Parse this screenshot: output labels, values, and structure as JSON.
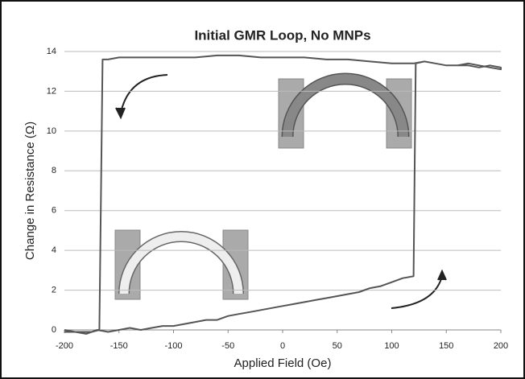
{
  "chart_data": {
    "type": "line",
    "title": "Initial GMR Loop, No MNPs",
    "xlabel": "Applied Field (Oe)",
    "ylabel": "Change in Resistance (Ω)",
    "x": [
      -200,
      -190,
      -180,
      -170,
      -160,
      -150,
      -140,
      -130,
      -120,
      -110,
      -100,
      -90,
      -80,
      -70,
      -60,
      -50,
      -40,
      -30,
      -20,
      -10,
      0,
      10,
      20,
      30,
      40,
      50,
      60,
      70,
      80,
      90,
      100,
      110,
      120,
      122,
      130,
      140,
      150,
      160,
      170,
      180,
      190,
      200,
      200,
      190,
      180,
      170,
      160,
      150,
      140,
      130,
      120,
      100,
      80,
      60,
      40,
      20,
      0,
      -20,
      -40,
      -60,
      -80,
      -100,
      -120,
      -140,
      -150,
      -160,
      -165,
      -168,
      -175,
      -185,
      -200
    ],
    "series": [
      {
        "color": "#555555",
        "values": [
          0,
          -0.1,
          -0.2,
          0,
          -0.1,
          0,
          0.1,
          0,
          0.1,
          0.2,
          0.2,
          0.3,
          0.4,
          0.5,
          0.5,
          0.7,
          0.8,
          0.9,
          1.0,
          1.1,
          1.2,
          1.3,
          1.4,
          1.5,
          1.6,
          1.7,
          1.8,
          1.9,
          2.1,
          2.2,
          2.4,
          2.6,
          2.7,
          13.4,
          13.5,
          13.4,
          13.3,
          13.3,
          13.3,
          13.2,
          13.3,
          13.2,
          13.1,
          13.2,
          13.3,
          13.4,
          13.3,
          13.3,
          13.4,
          13.5,
          13.4,
          13.4,
          13.5,
          13.6,
          13.6,
          13.7,
          13.7,
          13.7,
          13.8,
          13.8,
          13.7,
          13.7,
          13.7,
          13.7,
          13.7,
          13.6,
          13.6,
          0,
          -0.1,
          -0.1,
          -0.1
        ]
      }
    ],
    "xlim": [
      -200,
      200
    ],
    "xticks": [
      -200,
      -150,
      -100,
      -50,
      0,
      50,
      100,
      150,
      200
    ],
    "ylim": [
      0,
      14
    ],
    "yticks": [
      0,
      2,
      4,
      6,
      8,
      10,
      12,
      14
    ],
    "grid": true
  }
}
